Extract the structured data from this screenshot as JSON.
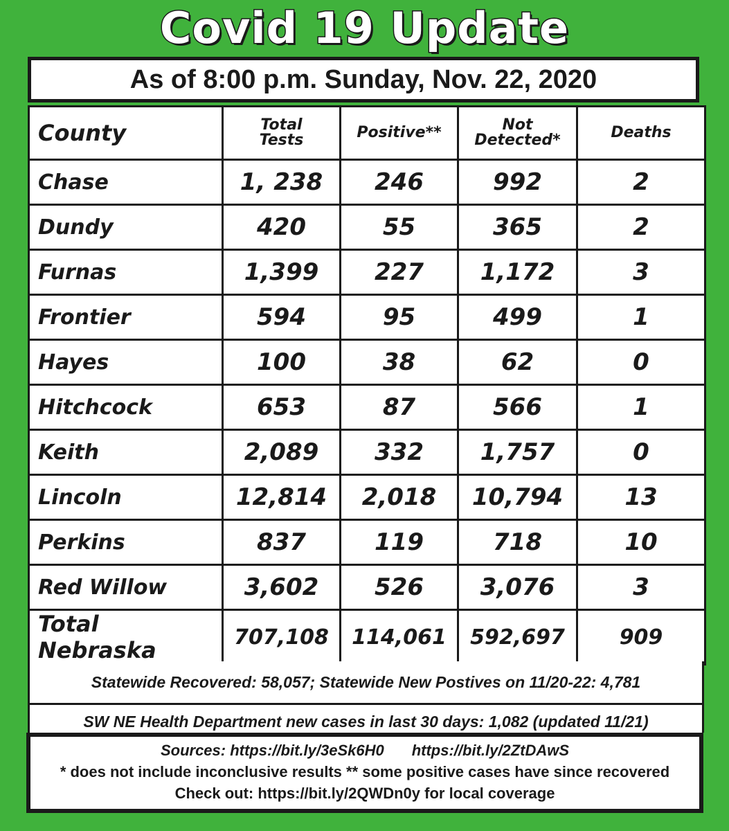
{
  "title": "Covid 19 Update",
  "as_of": "As of 8:00 p.m. Sunday, Nov. 22, 2020",
  "table": {
    "headers": [
      "County",
      "Total Tests",
      "Positive**",
      "Not Detected*",
      "Deaths"
    ],
    "header_lines": {
      "total_tests": [
        "Total",
        "Tests"
      ],
      "not_detected": [
        "Not",
        "Detected*"
      ]
    },
    "rows": [
      [
        "Chase",
        "1, 238",
        "246",
        "992",
        "2"
      ],
      [
        "Dundy",
        "420",
        "55",
        "365",
        "2"
      ],
      [
        "Furnas",
        "1,399",
        "227",
        "1,172",
        "3"
      ],
      [
        "Frontier",
        "594",
        "95",
        "499",
        "1"
      ],
      [
        "Hayes",
        "100",
        "38",
        "62",
        "0"
      ],
      [
        "Hitchcock",
        "653",
        "87",
        "566",
        "1"
      ],
      [
        "Keith",
        "2,089",
        "332",
        "1,757",
        "0"
      ],
      [
        "Lincoln",
        "12,814",
        "2,018",
        "10,794",
        "13"
      ],
      [
        "Perkins",
        "837",
        "119",
        "718",
        "10"
      ],
      [
        "Red Willow",
        "3,602",
        "526",
        "3,076",
        "3"
      ],
      [
        "Total Nebraska",
        "707,108",
        "114,061",
        "592,697",
        "909"
      ]
    ]
  },
  "notes": {
    "statewide": "Statewide Recovered: 58,057; Statewide New Postives on 11/20-22: 4,781",
    "health_dept": "SW NE Health Department new cases in last 30 days: 1,082 (updated 11/21)"
  },
  "sources": {
    "label": "Sources: https://bit.ly/3eSk6H0",
    "link2": "https://bit.ly/2ZtDAwS",
    "footnote": "* does not include inconclusive results  ** some positive cases have since recovered",
    "check_out": "Check out: https://bit.ly/2QWDn0y  for local coverage"
  },
  "colors": {
    "background": "#40b23c",
    "border": "#1a1a1a"
  }
}
